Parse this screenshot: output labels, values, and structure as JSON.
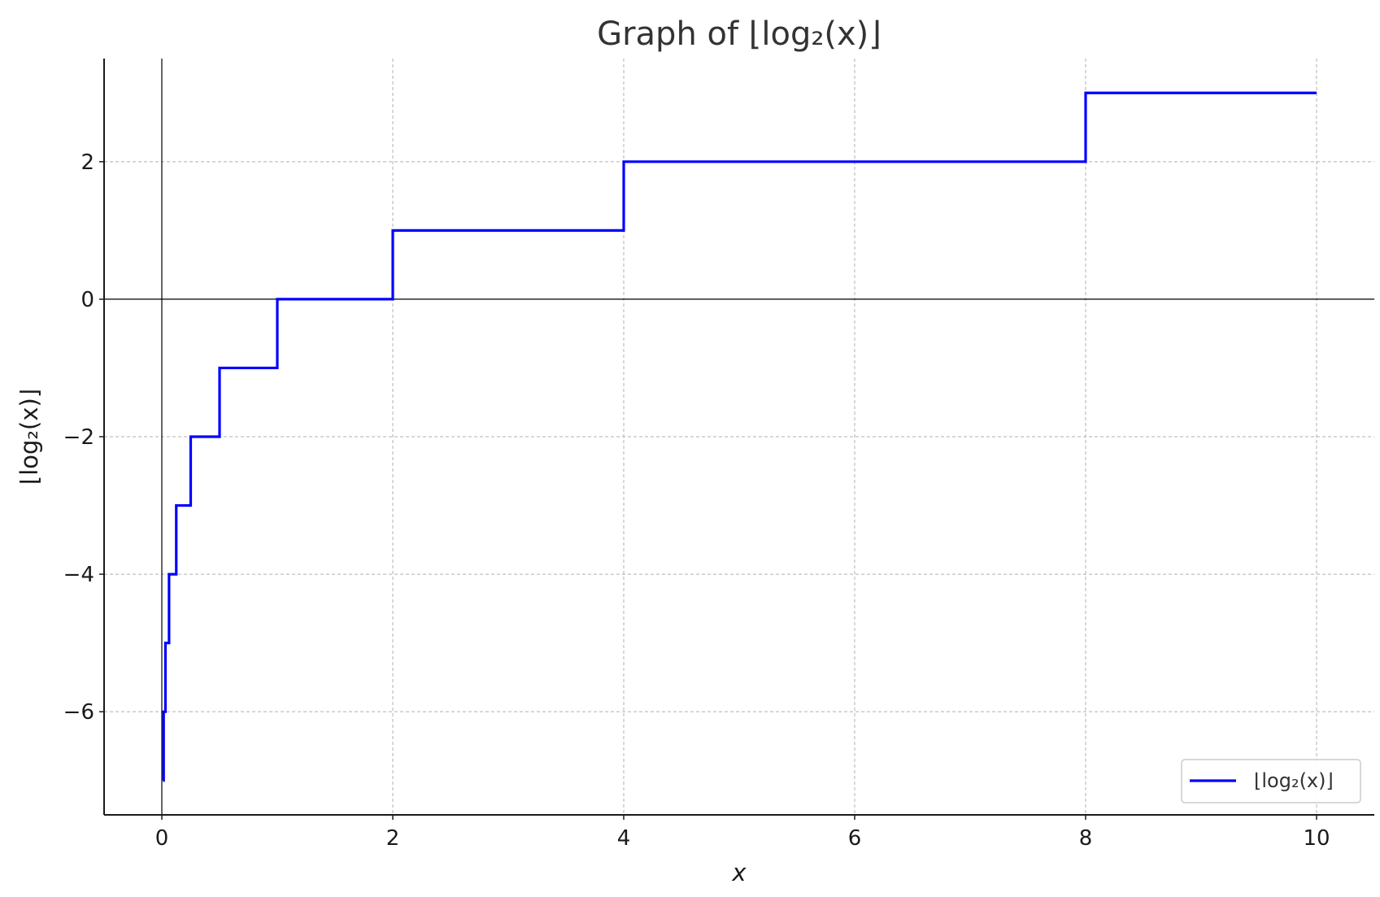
{
  "chart_data": {
    "type": "line",
    "title": "Graph of ⌊log₂(x)⌋",
    "xlabel": "x",
    "ylabel": "⌊log₂(x)⌋",
    "xlim": [
      -0.5,
      10.5
    ],
    "ylim": [
      -7.5,
      3.5
    ],
    "x_ticks": [
      0,
      2,
      4,
      6,
      8,
      10
    ],
    "y_ticks": [
      -6,
      -4,
      -2,
      0,
      2
    ],
    "x_tick_labels": [
      "0",
      "2",
      "4",
      "6",
      "8",
      "10"
    ],
    "y_tick_labels": [
      "−6",
      "−4",
      "−2",
      "0",
      "2"
    ],
    "grid": true,
    "reference_lines": {
      "x": 0,
      "y": 0
    },
    "legend": {
      "position": "bottom-right",
      "entries": [
        "⌊log₂(x)⌋"
      ]
    },
    "series": [
      {
        "name": "⌊log₂(x)⌋",
        "color": "#0000ff",
        "x": [
          0.01,
          0.015625,
          0.015625,
          0.03125,
          0.03125,
          0.0625,
          0.0625,
          0.125,
          0.125,
          0.25,
          0.25,
          0.5,
          0.5,
          1,
          1,
          2,
          2,
          4,
          4,
          8,
          8,
          10
        ],
        "y": [
          -7,
          -7,
          -6,
          -6,
          -5,
          -5,
          -4,
          -4,
          -3,
          -3,
          -2,
          -2,
          -1,
          -1,
          0,
          0,
          1,
          1,
          2,
          2,
          3,
          3
        ]
      }
    ]
  }
}
